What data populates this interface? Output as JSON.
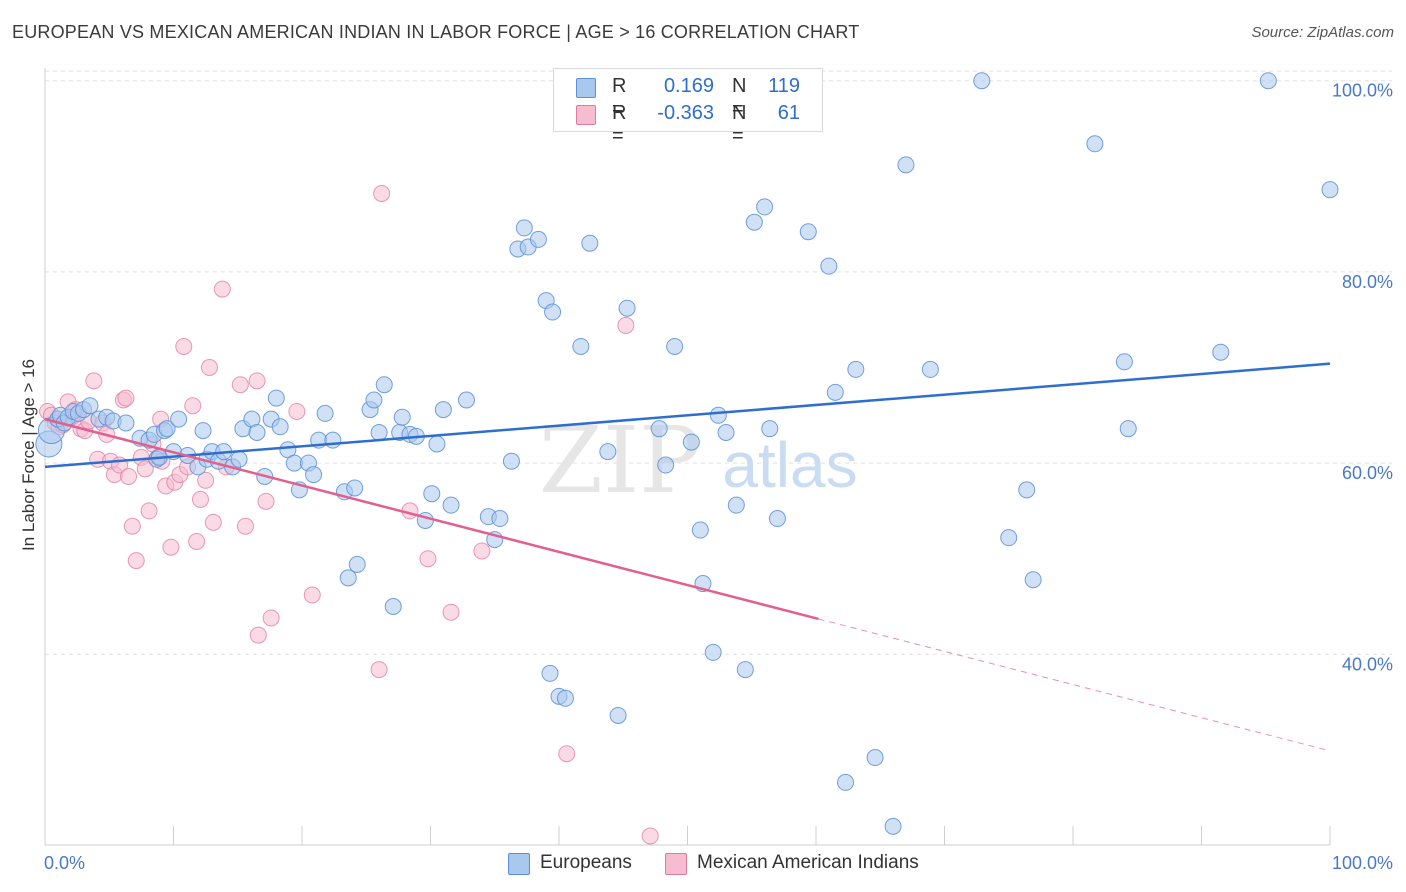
{
  "title": "EUROPEAN VS MEXICAN AMERICAN INDIAN IN LABOR FORCE | AGE > 16 CORRELATION CHART",
  "source": "Source: ZipAtlas.com",
  "watermark": {
    "zip": "ZIP",
    "atlas": "atlas"
  },
  "legend": {
    "rows": [
      {
        "r_label": "R =",
        "r_value": "0.169",
        "n_label": "N =",
        "n_value": "119",
        "color": "#a9c8ee",
        "edge": "#5b8fd6"
      },
      {
        "r_label": "R =",
        "r_value": "-0.363",
        "n_label": "N =",
        "n_value": "61",
        "color": "#f6bcd0",
        "edge": "#e07aa0"
      }
    ]
  },
  "bottom_legend": [
    {
      "label": "Europeans",
      "color": "#a9c8ee",
      "edge": "#5b8fd6"
    },
    {
      "label": "Mexican American Indians",
      "color": "#f6bcd0",
      "edge": "#e07aa0"
    }
  ],
  "chart_data": {
    "type": "scatter",
    "title": "EUROPEAN VS MEXICAN AMERICAN INDIAN IN LABOR FORCE | AGE > 16 CORRELATION CHART",
    "xlabel": "",
    "ylabel": "In Labor Force | Age > 16",
    "xlim": [
      0,
      100
    ],
    "ylim": [
      20,
      103
    ],
    "x_tick_labels": [
      "0.0%",
      "100.0%"
    ],
    "y_ticks": [
      40,
      60,
      80,
      100
    ],
    "y_tick_labels": [
      "40.0%",
      "60.0%",
      "80.0%",
      "100.0%"
    ],
    "grid": true,
    "series": [
      {
        "name": "Europeans",
        "color": "#a9c8ee",
        "edge": "#5b8fd6",
        "trend": {
          "x": [
            0,
            100
          ],
          "y": [
            59.6,
            70.4
          ],
          "line": "#2e6ecf"
        },
        "points": [
          [
            0.3,
            62.0
          ],
          [
            0.5,
            63.4
          ],
          [
            1.0,
            64.6
          ],
          [
            1.2,
            65.0
          ],
          [
            1.5,
            64.2
          ],
          [
            1.8,
            64.8
          ],
          [
            2.2,
            65.4
          ],
          [
            2.6,
            65.2
          ],
          [
            3.0,
            65.6
          ],
          [
            3.5,
            66.0
          ],
          [
            4.2,
            64.6
          ],
          [
            4.8,
            64.8
          ],
          [
            5.3,
            64.4
          ],
          [
            6.3,
            64.2
          ],
          [
            7.4,
            62.6
          ],
          [
            8.1,
            62.4
          ],
          [
            8.5,
            63.0
          ],
          [
            8.7,
            60.4
          ],
          [
            8.9,
            60.6
          ],
          [
            9.3,
            63.4
          ],
          [
            9.5,
            63.6
          ],
          [
            10.0,
            61.2
          ],
          [
            10.4,
            64.6
          ],
          [
            11.1,
            60.8
          ],
          [
            11.9,
            59.6
          ],
          [
            12.3,
            63.4
          ],
          [
            12.6,
            60.4
          ],
          [
            13.0,
            61.2
          ],
          [
            13.5,
            60.2
          ],
          [
            13.9,
            61.2
          ],
          [
            14.6,
            59.6
          ],
          [
            15.1,
            60.4
          ],
          [
            15.4,
            63.6
          ],
          [
            16.1,
            64.6
          ],
          [
            16.5,
            63.2
          ],
          [
            17.1,
            58.6
          ],
          [
            17.6,
            64.6
          ],
          [
            18.0,
            66.8
          ],
          [
            18.3,
            63.8
          ],
          [
            18.9,
            61.4
          ],
          [
            19.4,
            60.0
          ],
          [
            19.8,
            57.2
          ],
          [
            20.5,
            60.0
          ],
          [
            20.9,
            58.8
          ],
          [
            21.3,
            62.4
          ],
          [
            21.8,
            65.2
          ],
          [
            22.4,
            62.4
          ],
          [
            23.3,
            57.0
          ],
          [
            24.1,
            57.4
          ],
          [
            24.3,
            49.4
          ],
          [
            23.6,
            48.0
          ],
          [
            25.3,
            65.6
          ],
          [
            25.6,
            66.6
          ],
          [
            26.0,
            63.2
          ],
          [
            26.4,
            68.2
          ],
          [
            27.1,
            45.0
          ],
          [
            27.6,
            63.2
          ],
          [
            27.8,
            64.8
          ],
          [
            28.4,
            63.0
          ],
          [
            28.9,
            62.8
          ],
          [
            29.6,
            54.0
          ],
          [
            30.1,
            56.8
          ],
          [
            30.5,
            62.0
          ],
          [
            31.0,
            65.6
          ],
          [
            31.6,
            55.6
          ],
          [
            32.8,
            66.6
          ],
          [
            34.5,
            54.4
          ],
          [
            35.0,
            52.0
          ],
          [
            35.4,
            54.2
          ],
          [
            36.3,
            60.2
          ],
          [
            36.8,
            82.4
          ],
          [
            37.3,
            84.6
          ],
          [
            37.6,
            82.6
          ],
          [
            38.4,
            83.4
          ],
          [
            39.0,
            77.0
          ],
          [
            39.5,
            75.8
          ],
          [
            40.0,
            35.6
          ],
          [
            39.3,
            38.0
          ],
          [
            40.5,
            35.4
          ],
          [
            41.7,
            72.2
          ],
          [
            42.4,
            83.0
          ],
          [
            43.8,
            61.2
          ],
          [
            44.6,
            33.6
          ],
          [
            45.3,
            76.2
          ],
          [
            47.8,
            63.6
          ],
          [
            48.3,
            59.8
          ],
          [
            49.0,
            72.2
          ],
          [
            50.3,
            62.2
          ],
          [
            51.0,
            53.0
          ],
          [
            51.2,
            47.4
          ],
          [
            52.4,
            65.0
          ],
          [
            52.0,
            40.2
          ],
          [
            53.0,
            63.2
          ],
          [
            53.8,
            55.6
          ],
          [
            54.5,
            38.4
          ],
          [
            55.2,
            85.2
          ],
          [
            56.0,
            86.8
          ],
          [
            56.4,
            63.6
          ],
          [
            57.0,
            54.2
          ],
          [
            59.4,
            84.2
          ],
          [
            61.0,
            80.6
          ],
          [
            61.5,
            67.4
          ],
          [
            62.3,
            26.6
          ],
          [
            63.1,
            69.8
          ],
          [
            64.6,
            29.2
          ],
          [
            66.0,
            22.0
          ],
          [
            67.0,
            91.2
          ],
          [
            68.9,
            69.8
          ],
          [
            72.9,
            100.0
          ],
          [
            75.0,
            52.2
          ],
          [
            76.4,
            57.2
          ],
          [
            76.9,
            47.8
          ],
          [
            81.7,
            93.4
          ],
          [
            84.0,
            70.6
          ],
          [
            84.3,
            63.6
          ],
          [
            91.5,
            71.6
          ],
          [
            95.2,
            100.0
          ],
          [
            100.0,
            88.6
          ],
          [
            50.5,
            100.0
          ]
        ]
      },
      {
        "name": "Mexican American Indians",
        "color": "#f6bcd0",
        "edge": "#e07aa0",
        "trend": {
          "x": [
            0,
            60.2
          ],
          "y": [
            64.6,
            43.7
          ],
          "line": "#e35f8e",
          "dash_to": [
            100,
            29.9
          ]
        },
        "points": [
          [
            0.2,
            65.4
          ],
          [
            0.5,
            65.0
          ],
          [
            0.8,
            64.2
          ],
          [
            1.1,
            63.8
          ],
          [
            1.4,
            64.0
          ],
          [
            1.8,
            66.4
          ],
          [
            2.1,
            64.8
          ],
          [
            2.4,
            65.6
          ],
          [
            2.8,
            63.6
          ],
          [
            3.1,
            63.4
          ],
          [
            3.4,
            64.4
          ],
          [
            3.8,
            68.6
          ],
          [
            4.1,
            60.4
          ],
          [
            4.5,
            64.2
          ],
          [
            4.8,
            63.0
          ],
          [
            5.1,
            60.2
          ],
          [
            5.4,
            58.8
          ],
          [
            5.8,
            59.8
          ],
          [
            6.1,
            66.6
          ],
          [
            6.5,
            58.6
          ],
          [
            6.8,
            53.4
          ],
          [
            7.1,
            49.8
          ],
          [
            7.5,
            60.6
          ],
          [
            7.8,
            59.4
          ],
          [
            8.1,
            55.0
          ],
          [
            8.4,
            62.0
          ],
          [
            8.8,
            60.6
          ],
          [
            9.1,
            60.2
          ],
          [
            9.4,
            57.6
          ],
          [
            9.8,
            51.2
          ],
          [
            10.1,
            58.0
          ],
          [
            10.5,
            58.8
          ],
          [
            10.8,
            72.2
          ],
          [
            11.1,
            59.6
          ],
          [
            11.5,
            66.0
          ],
          [
            11.8,
            51.8
          ],
          [
            12.1,
            56.2
          ],
          [
            12.5,
            58.2
          ],
          [
            12.8,
            70.0
          ],
          [
            13.1,
            53.8
          ],
          [
            13.8,
            78.2
          ],
          [
            14.1,
            59.6
          ],
          [
            15.2,
            68.2
          ],
          [
            15.6,
            53.4
          ],
          [
            16.5,
            68.6
          ],
          [
            16.6,
            42.0
          ],
          [
            17.2,
            56.0
          ],
          [
            17.6,
            43.8
          ],
          [
            19.6,
            65.4
          ],
          [
            20.8,
            46.2
          ],
          [
            26.0,
            38.4
          ],
          [
            26.2,
            88.2
          ],
          [
            28.4,
            55.0
          ],
          [
            29.8,
            50.0
          ],
          [
            31.6,
            44.4
          ],
          [
            34.0,
            50.8
          ],
          [
            40.6,
            29.6
          ],
          [
            45.2,
            74.4
          ],
          [
            47.1,
            21.0
          ],
          [
            9.0,
            64.6
          ],
          [
            6.3,
            66.8
          ]
        ]
      }
    ]
  }
}
